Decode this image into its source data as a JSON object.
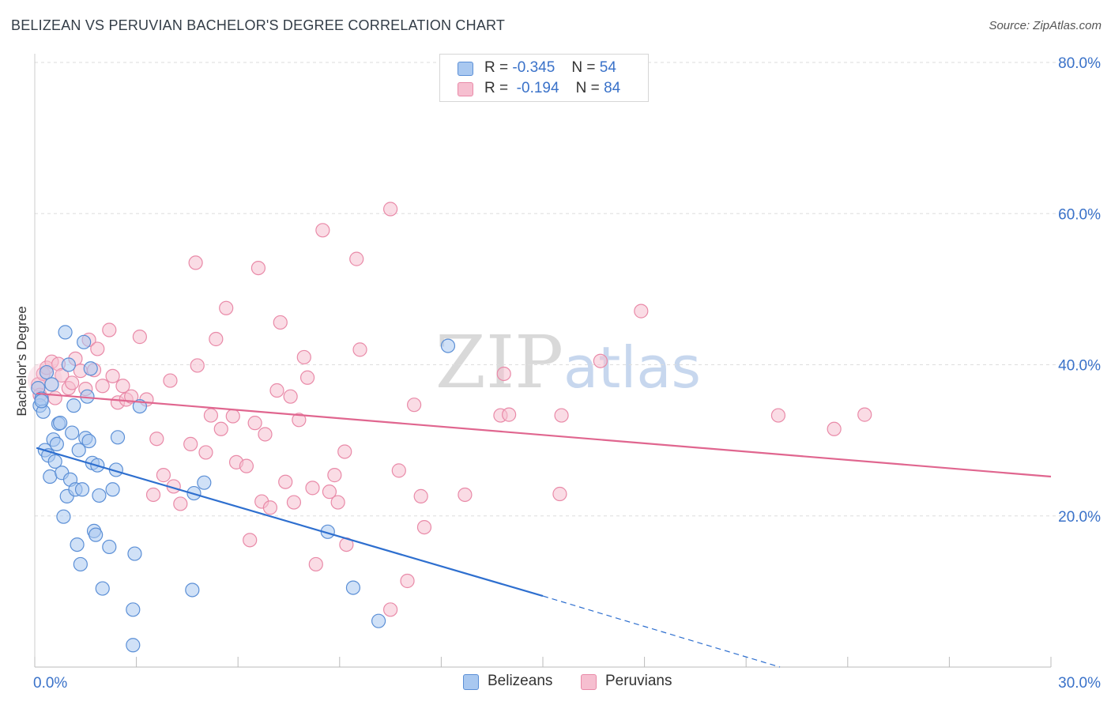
{
  "title": "BELIZEAN VS PERUVIAN BACHELOR'S DEGREE CORRELATION CHART",
  "source": "Source: ZipAtlas.com",
  "watermark": {
    "zip": "ZIP",
    "atlas": "atlas"
  },
  "legend": {
    "rows": [
      {
        "r_label": "R =",
        "r_value": "-0.345",
        "n_label": "N =",
        "n_value": "54"
      },
      {
        "r_label": "R =",
        "r_value": "-0.194",
        "n_label": "N =",
        "n_value": "84"
      }
    ]
  },
  "bottom_legend": {
    "belizeans": "Belizeans",
    "peruvians": "Peruvians"
  },
  "colors": {
    "belizean_fill": "#a9c8f0",
    "belizean_stroke": "#5b8fd6",
    "belizean_line": "#2e6fcf",
    "peruvian_fill": "#f6bfd0",
    "peruvian_stroke": "#e98aa8",
    "peruvian_line": "#e0668f",
    "tick_label": "#3a72c9",
    "grid": "#dddddd"
  },
  "chart_data": {
    "type": "scatter",
    "title": "BELIZEAN VS PERUVIAN BACHELOR'S DEGREE CORRELATION CHART",
    "xlabel": "",
    "ylabel": "Bachelor's Degree",
    "xlim": [
      0,
      30
    ],
    "ylim": [
      0,
      80
    ],
    "x_tick_labels": [
      "0.0%",
      "30.0%"
    ],
    "y_ticks": [
      20,
      40,
      60,
      80
    ],
    "y_tick_labels": [
      "20.0%",
      "40.0%",
      "60.0%",
      "80.0%"
    ],
    "grid": "horizontal dashed",
    "legend_position": "top-center",
    "series": [
      {
        "name": "Belizeans",
        "r": -0.345,
        "n": 54,
        "trend": {
          "x0": 0.05,
          "y0": 29.0,
          "x1": 15.0,
          "y1": 9.4,
          "dash_x1": 22.0,
          "dash_y1": 0.0
        },
        "points": [
          [
            0.1,
            36.9
          ],
          [
            0.15,
            34.6
          ],
          [
            0.2,
            35.5
          ],
          [
            0.25,
            33.8
          ],
          [
            0.3,
            28.7
          ],
          [
            0.35,
            39.0
          ],
          [
            0.4,
            28.0
          ],
          [
            0.45,
            25.2
          ],
          [
            0.5,
            37.4
          ],
          [
            0.55,
            30.1
          ],
          [
            0.6,
            27.2
          ],
          [
            0.65,
            29.5
          ],
          [
            0.7,
            32.2
          ],
          [
            0.75,
            32.3
          ],
          [
            0.8,
            25.7
          ],
          [
            0.85,
            19.9
          ],
          [
            0.9,
            44.3
          ],
          [
            0.95,
            22.6
          ],
          [
            1.0,
            40.0
          ],
          [
            1.05,
            24.8
          ],
          [
            1.1,
            31.0
          ],
          [
            1.15,
            34.6
          ],
          [
            1.2,
            23.5
          ],
          [
            1.25,
            16.2
          ],
          [
            1.3,
            28.7
          ],
          [
            1.35,
            13.6
          ],
          [
            1.4,
            23.5
          ],
          [
            1.45,
            43.0
          ],
          [
            1.5,
            30.3
          ],
          [
            1.55,
            35.8
          ],
          [
            1.6,
            29.9
          ],
          [
            1.65,
            39.5
          ],
          [
            1.7,
            27.0
          ],
          [
            1.75,
            18.0
          ],
          [
            1.8,
            17.5
          ],
          [
            1.85,
            26.7
          ],
          [
            1.9,
            22.7
          ],
          [
            2.0,
            10.4
          ],
          [
            2.2,
            15.9
          ],
          [
            2.3,
            23.5
          ],
          [
            2.4,
            26.1
          ],
          [
            2.45,
            30.4
          ],
          [
            2.9,
            7.6
          ],
          [
            2.95,
            15.0
          ],
          [
            3.1,
            34.5
          ],
          [
            2.9,
            2.9
          ],
          [
            4.65,
            10.2
          ],
          [
            4.7,
            23.0
          ],
          [
            5.0,
            24.4
          ],
          [
            8.65,
            17.9
          ],
          [
            9.4,
            10.5
          ],
          [
            10.15,
            6.1
          ],
          [
            12.2,
            42.5
          ],
          [
            0.2,
            35.2
          ]
        ]
      },
      {
        "name": "Peruvians",
        "r": -0.194,
        "n": 84,
        "trend": {
          "x0": 0.05,
          "y0": 36.2,
          "x1": 30.0,
          "y1": 25.2
        },
        "points": [
          [
            0.1,
            37.4
          ],
          [
            0.15,
            36.0
          ],
          [
            0.25,
            38.8
          ],
          [
            0.35,
            39.6
          ],
          [
            0.5,
            40.4
          ],
          [
            0.6,
            35.6
          ],
          [
            0.7,
            40.1
          ],
          [
            0.8,
            38.6
          ],
          [
            1.0,
            36.9
          ],
          [
            1.1,
            37.6
          ],
          [
            1.2,
            40.8
          ],
          [
            1.35,
            39.2
          ],
          [
            1.5,
            36.8
          ],
          [
            1.6,
            43.3
          ],
          [
            1.75,
            39.3
          ],
          [
            1.85,
            42.1
          ],
          [
            2.0,
            37.2
          ],
          [
            2.2,
            44.6
          ],
          [
            2.3,
            38.5
          ],
          [
            2.45,
            35.0
          ],
          [
            2.6,
            37.2
          ],
          [
            2.7,
            35.4
          ],
          [
            2.85,
            35.8
          ],
          [
            3.1,
            43.7
          ],
          [
            3.3,
            35.4
          ],
          [
            3.5,
            22.8
          ],
          [
            3.6,
            30.2
          ],
          [
            3.8,
            25.4
          ],
          [
            4.0,
            37.9
          ],
          [
            4.1,
            23.9
          ],
          [
            4.3,
            21.6
          ],
          [
            4.6,
            29.5
          ],
          [
            4.75,
            53.5
          ],
          [
            4.8,
            39.9
          ],
          [
            5.05,
            28.4
          ],
          [
            5.2,
            33.3
          ],
          [
            5.35,
            43.4
          ],
          [
            5.5,
            31.5
          ],
          [
            5.65,
            47.5
          ],
          [
            5.85,
            33.2
          ],
          [
            5.95,
            27.1
          ],
          [
            6.25,
            26.6
          ],
          [
            6.35,
            16.8
          ],
          [
            6.5,
            32.3
          ],
          [
            6.6,
            52.8
          ],
          [
            6.7,
            21.9
          ],
          [
            6.8,
            30.8
          ],
          [
            6.95,
            21.1
          ],
          [
            7.15,
            36.6
          ],
          [
            7.25,
            45.6
          ],
          [
            7.4,
            24.5
          ],
          [
            7.55,
            35.8
          ],
          [
            7.65,
            21.8
          ],
          [
            7.8,
            32.7
          ],
          [
            7.95,
            41.0
          ],
          [
            8.05,
            38.3
          ],
          [
            8.2,
            23.7
          ],
          [
            8.3,
            13.6
          ],
          [
            8.5,
            57.8
          ],
          [
            8.7,
            23.2
          ],
          [
            8.85,
            25.4
          ],
          [
            8.95,
            21.8
          ],
          [
            9.15,
            28.5
          ],
          [
            9.2,
            16.2
          ],
          [
            9.5,
            54.0
          ],
          [
            9.6,
            42.0
          ],
          [
            10.5,
            60.6
          ],
          [
            10.5,
            7.6
          ],
          [
            10.75,
            26.0
          ],
          [
            11.0,
            11.4
          ],
          [
            11.2,
            34.7
          ],
          [
            11.4,
            22.6
          ],
          [
            11.5,
            18.5
          ],
          [
            12.7,
            22.8
          ],
          [
            13.75,
            33.3
          ],
          [
            13.85,
            38.8
          ],
          [
            14.0,
            33.4
          ],
          [
            15.5,
            22.9
          ],
          [
            15.55,
            33.3
          ],
          [
            16.7,
            40.5
          ],
          [
            17.9,
            47.1
          ],
          [
            21.95,
            33.3
          ],
          [
            23.6,
            31.5
          ],
          [
            24.5,
            33.4
          ]
        ]
      }
    ]
  }
}
